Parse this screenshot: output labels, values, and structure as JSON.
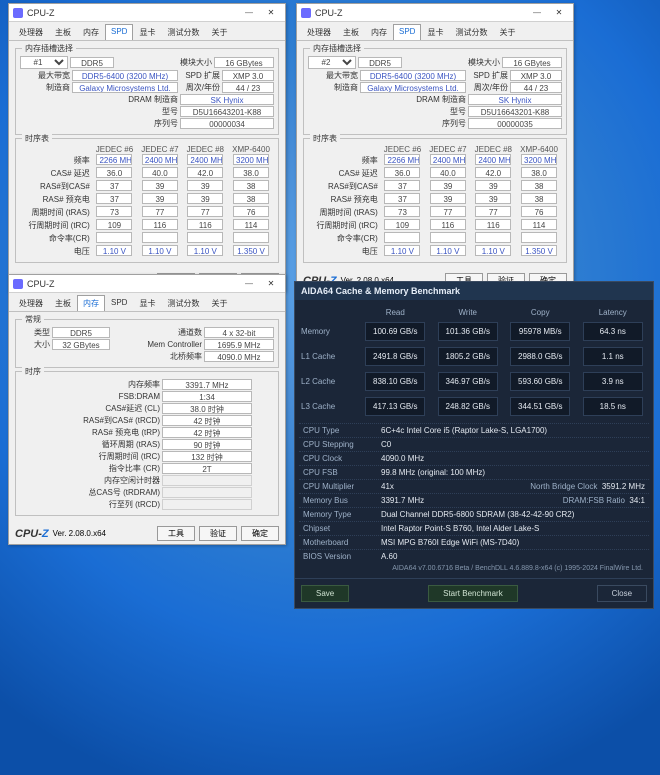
{
  "desktop_bg": "#1a6dd4",
  "cpuz_common": {
    "app_title": "CPU-Z",
    "version": "Ver. 2.08.0.x64",
    "logo_text": "CPU-Z",
    "tabs": [
      "处理器",
      "主板",
      "内存",
      "SPD",
      "显卡",
      "测试分数",
      "关于"
    ],
    "section_slot": "内存插槽选择",
    "section_timing": "时序表",
    "slot_label": "插槽",
    "module_size_label": "模块大小",
    "max_bw_label": "最大带宽",
    "spd_ext_label": "SPD 扩展",
    "mfr_label": "制造商",
    "week_year_label": "周次/年份",
    "dram_mfr_label": "DRAM 制造商",
    "model_label": "型号",
    "serial_label": "序列号",
    "timing_rows": [
      "频率",
      "CAS# 延迟",
      "RAS#到CAS#",
      "RAS# 预充电",
      "周期时间 (tRAS)",
      "行周期时间 (tRC)",
      "命令率(CR)",
      "电压"
    ],
    "timing_cols": [
      "JEDEC #6",
      "JEDEC #7",
      "JEDEC #8",
      "XMP-6400"
    ],
    "btn_tools": "工具",
    "btn_verify": "验证",
    "btn_ok": "确定"
  },
  "cpuz_spd": [
    {
      "slot": "#1",
      "type": "DDR5",
      "module_size": "16 GBytes",
      "max_bw": "DDR5-6400 (3200 MHz)",
      "spd_ext": "XMP 3.0",
      "mfr": "Galaxy Microsystems Ltd.",
      "week_year": "44 / 23",
      "dram_mfr": "SK Hynix",
      "model": "D5U16643201-K88",
      "serial": "00000034",
      "timing": [
        [
          "2266 MHz",
          "2400 MHz",
          "2400 MHz",
          "3200 MHz"
        ],
        [
          "36.0",
          "40.0",
          "42.0",
          "38.0"
        ],
        [
          "37",
          "39",
          "39",
          "38"
        ],
        [
          "37",
          "39",
          "39",
          "38"
        ],
        [
          "73",
          "77",
          "77",
          "76"
        ],
        [
          "109",
          "116",
          "116",
          "114"
        ],
        [
          "",
          "",
          "",
          ""
        ],
        [
          "1.10 V",
          "1.10 V",
          "1.10 V",
          "1.350 V"
        ]
      ]
    },
    {
      "slot": "#2",
      "type": "DDR5",
      "module_size": "16 GBytes",
      "max_bw": "DDR5-6400 (3200 MHz)",
      "spd_ext": "XMP 3.0",
      "mfr": "Galaxy Microsystems Ltd.",
      "week_year": "44 / 23",
      "dram_mfr": "SK Hynix",
      "model": "D5U16643201-K88",
      "serial": "00000035",
      "timing": [
        [
          "2266 MHz",
          "2400 MHz",
          "2400 MHz",
          "3200 MHz"
        ],
        [
          "36.0",
          "40.0",
          "42.0",
          "38.0"
        ],
        [
          "37",
          "39",
          "39",
          "38"
        ],
        [
          "37",
          "39",
          "39",
          "38"
        ],
        [
          "73",
          "77",
          "77",
          "76"
        ],
        [
          "109",
          "116",
          "116",
          "114"
        ],
        [
          "",
          "",
          "",
          ""
        ],
        [
          "1.10 V",
          "1.10 V",
          "1.10 V",
          "1.350 V"
        ]
      ]
    }
  ],
  "cpuz_mem": {
    "active_tab": "内存",
    "section_general": "常规",
    "section_timing": "时序",
    "type_label": "类型",
    "type": "DDR5",
    "channels_label": "通道数",
    "channels": "4 x 32-bit",
    "size_label": "大小",
    "size": "32 GBytes",
    "memctrl_label": "Mem Controller",
    "memctrl": "1695.9 MHz",
    "nb_label": "北桥频率",
    "nb": "4090.0 MHz",
    "rows": [
      [
        "内存频率",
        "3391.7 MHz"
      ],
      [
        "FSB:DRAM",
        "1:34"
      ],
      [
        "CAS#延迟 (CL)",
        "38.0 时钟"
      ],
      [
        "RAS#到CAS# (tRCD)",
        "42 时钟"
      ],
      [
        "RAS# 预充电 (tRP)",
        "42 时钟"
      ],
      [
        "循环周期 (tRAS)",
        "90 时钟"
      ],
      [
        "行周期时间 (tRC)",
        "132 时钟"
      ],
      [
        "指令比率 (CR)",
        "2T"
      ],
      [
        "内存空闲计时器",
        ""
      ],
      [
        "总CAS号 (tRDRAM)",
        ""
      ],
      [
        "行至列 (tRCD)",
        ""
      ]
    ]
  },
  "aida": {
    "title": "AIDA64 Cache & Memory Benchmark",
    "cols": [
      "Read",
      "Write",
      "Copy",
      "Latency"
    ],
    "rows": [
      [
        "Memory",
        "100.69 GB/s",
        "101.36 GB/s",
        "95978 MB/s",
        "64.3 ns"
      ],
      [
        "L1 Cache",
        "2491.8 GB/s",
        "1805.2 GB/s",
        "2988.0 GB/s",
        "1.1 ns"
      ],
      [
        "L2 Cache",
        "838.10 GB/s",
        "346.97 GB/s",
        "593.60 GB/s",
        "3.9 ns"
      ],
      [
        "L3 Cache",
        "417.13 GB/s",
        "248.82 GB/s",
        "344.51 GB/s",
        "18.5 ns"
      ]
    ],
    "info": [
      [
        "CPU Type",
        "6C+4c Intel Core i5 (Raptor Lake-S, LGA1700)"
      ],
      [
        "CPU Stepping",
        "C0"
      ],
      [
        "CPU Clock",
        "4090.0 MHz"
      ],
      [
        "CPU FSB",
        "99.8 MHz (original: 100 MHz)"
      ],
      [
        "CPU Multiplier",
        "41x"
      ]
    ],
    "nbclock_label": "North Bridge Clock",
    "nbclock": "3591.2 MHz",
    "mem_info": [
      [
        "Memory Bus",
        "3391.7 MHz"
      ],
      [
        "Memory Type",
        "Dual Channel DDR5-6800 SDRAM (38-42-42-90 CR2)"
      ],
      [
        "Chipset",
        "Intel Raptor Point-S B760, Intel Alder Lake-S"
      ],
      [
        "Motherboard",
        "MSI MPG B760I Edge WiFi (MS-7D40)"
      ],
      [
        "BIOS Version",
        "A.60"
      ]
    ],
    "dram_fsb_ratio_label": "DRAM:FSB Ratio",
    "dram_fsb_ratio": "34:1",
    "credit": "AIDA64 v7.00.6716 Beta / BenchDLL 4.6.889.8-x64 (c) 1995-2024 FinalWire Ltd.",
    "btn_save": "Save",
    "btn_start": "Start Benchmark",
    "btn_close": "Close"
  }
}
